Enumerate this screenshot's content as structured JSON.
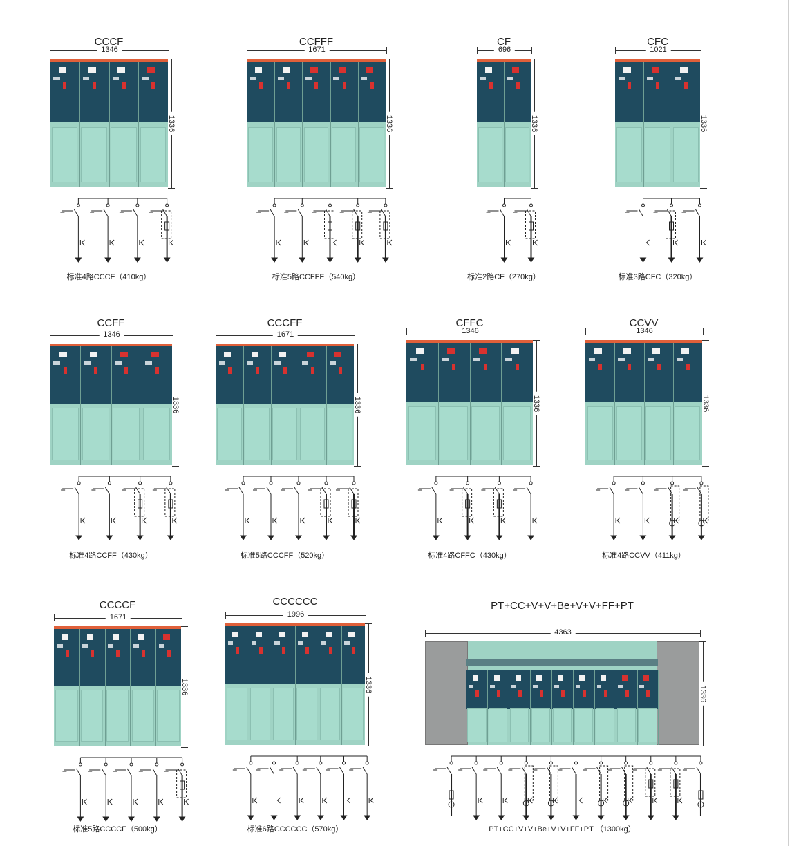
{
  "units": [
    {
      "title": "CCCF",
      "width_dim": "1346",
      "height_dim": "1336",
      "scheme": "CCCF",
      "caption": "标准4路CCCF（410kg）"
    },
    {
      "title": "CCFFF",
      "width_dim": "1671",
      "height_dim": "1336",
      "scheme": "CCFFF",
      "caption": "标准5路CCFFF（540kg）"
    },
    {
      "title": "CF",
      "width_dim": "696",
      "height_dim": "1336",
      "scheme": "CF",
      "caption": "标准2路CF（270kg）"
    },
    {
      "title": "CFC",
      "width_dim": "1021",
      "height_dim": "1336",
      "scheme": "CFC",
      "caption": "标准3路CFC（320kg）"
    },
    {
      "title": "CCFF",
      "width_dim": "1346",
      "height_dim": "1336",
      "scheme": "CCFF",
      "caption": "标准4路CCFF（430kg）"
    },
    {
      "title": "CCCFF",
      "width_dim": "1671",
      "height_dim": "1336",
      "scheme": "CCCFF",
      "caption": "标准5路CCCFF（520kg）"
    },
    {
      "title": "CFFC",
      "width_dim": "1346",
      "height_dim": "1336",
      "scheme": "CFFC",
      "caption": "标准4路CFFC（430kg）"
    },
    {
      "title": "CCVV",
      "width_dim": "1346",
      "height_dim": "1336",
      "scheme": "CCVV",
      "caption": "标准4路CCVV（411kg）"
    },
    {
      "title": "CCCCF",
      "width_dim": "1671",
      "height_dim": "1336",
      "scheme": "CCCCF",
      "caption": "标准5路CCCCF（500kg）"
    },
    {
      "title": "CCCCCC",
      "width_dim": "1996",
      "height_dim": "1336",
      "scheme": "CCCCCC",
      "caption": "标准6路CCCCCC（570kg）"
    },
    {
      "title": "PT+CC+V+V+Be+V+V+FF+PT",
      "width_dim": "4363",
      "height_dim": "1336",
      "scheme": "PCCVVBVVFFP",
      "caption": "PT+CC+V+V+Be+V+V+FF+PT （1300kg）"
    }
  ],
  "colors": {
    "cabinet_upper": "#1f4b5f",
    "cabinet_lower": "#9fd3c4",
    "top_strip": "#e0603a",
    "fuse_knob": "#d8322f",
    "pt_cabinet": "#9a9c9c"
  }
}
